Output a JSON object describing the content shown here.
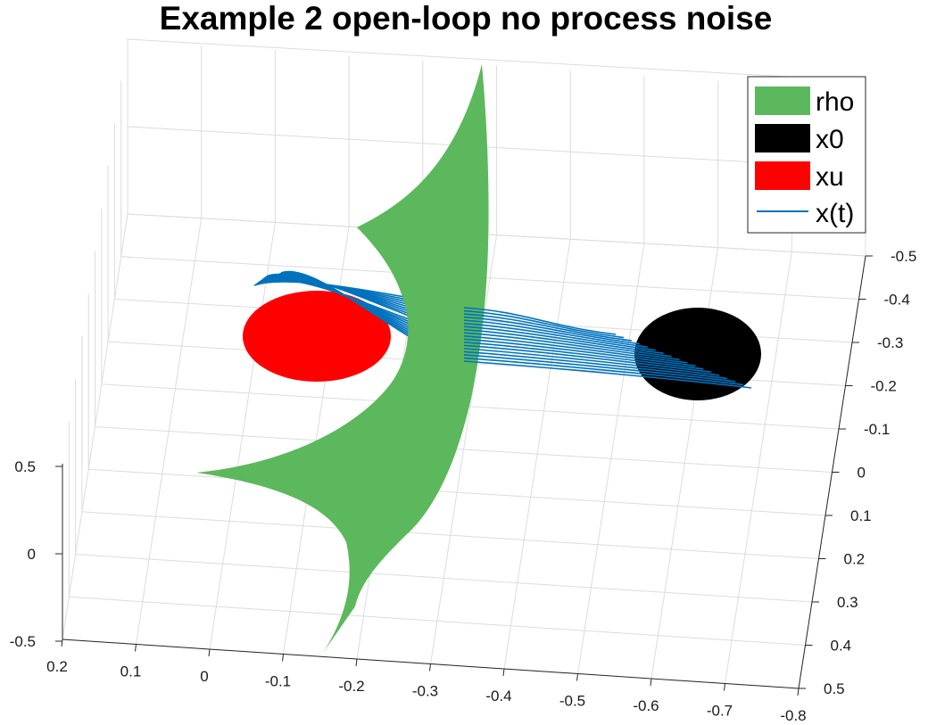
{
  "chart_data": {
    "type": "surface3d",
    "title": "Example 2 open-loop no process noise",
    "view": "3-D perspective",
    "x_axis": {
      "ticks": [
        "0.2",
        "0.1",
        "0",
        "-0.1",
        "-0.2",
        "-0.3",
        "-0.4",
        "-0.5",
        "-0.6",
        "-0.7",
        "-0.8"
      ],
      "range": [
        -0.8,
        0.2
      ]
    },
    "y_axis": {
      "ticks": [
        "-0.5",
        "-0.4",
        "-0.3",
        "-0.2",
        "-0.1",
        "0",
        "0.1",
        "0.2",
        "0.3",
        "0.4",
        "0.5"
      ],
      "range": [
        -0.5,
        0.5
      ]
    },
    "z_axis": {
      "ticks": [
        "0.5",
        "0",
        "-0.5"
      ],
      "range": [
        -0.5,
        0.5
      ]
    },
    "grid": true,
    "legend_position": "top-right",
    "series": [
      {
        "name": "rho",
        "type": "surface",
        "color": "#5cb85c"
      },
      {
        "name": "x0",
        "type": "disk",
        "color": "#000000"
      },
      {
        "name": "xu",
        "type": "disk",
        "color": "#ff0000"
      },
      {
        "name": "x(t)",
        "type": "trajectories",
        "color": "#0072bd",
        "count": 18
      }
    ]
  }
}
